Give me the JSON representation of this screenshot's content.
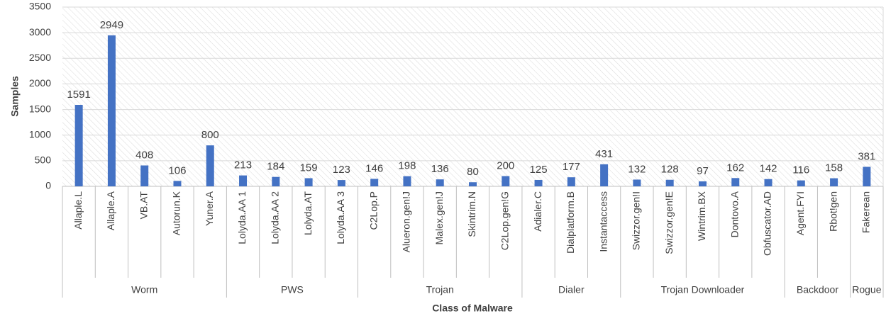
{
  "chart_data": {
    "type": "bar",
    "x_label": "Class of Malware",
    "y_label": "Samples",
    "color": "#4472c4",
    "ylim": [
      0,
      3500
    ],
    "yticks": [
      0,
      500,
      1000,
      1500,
      2000,
      2500,
      3000,
      3500
    ],
    "grid": true,
    "groups": [
      {
        "name": "Worm",
        "categories": [
          "Allaple.L",
          "Allaple.A",
          "VB.AT",
          "Autorun.K",
          "Yuner.A"
        ],
        "values": [
          1591,
          2949,
          408,
          106,
          800
        ]
      },
      {
        "name": "PWS",
        "categories": [
          "Lolyda.AA 1",
          "Lolyda.AA 2",
          "Lolyda.AT",
          "Lolyda.AA 3"
        ],
        "values": [
          213,
          184,
          159,
          123
        ]
      },
      {
        "name": "Trojan",
        "categories": [
          "C2Lop.P",
          "Alueron.gen!J",
          "Malex.gen!J",
          "Skintrim.N",
          "C2Lop.gen!G"
        ],
        "values": [
          146,
          198,
          136,
          80,
          200
        ]
      },
      {
        "name": "Dialer",
        "categories": [
          "Adialer.C",
          "Dialplatform.B",
          "Instantaccess"
        ],
        "values": [
          125,
          177,
          431
        ]
      },
      {
        "name": "Trojan Downloader",
        "categories": [
          "Swizzor.gen!I",
          "Swizzor.gen!E",
          "Wintrim.BX",
          "Dontovo.A",
          "Obfuscator.AD"
        ],
        "values": [
          132,
          128,
          97,
          162,
          142
        ]
      },
      {
        "name": "Backdoor",
        "categories": [
          "Agent.FYI",
          "Rbot!gen"
        ],
        "values": [
          116,
          158
        ]
      },
      {
        "name": "Rogue",
        "categories": [
          "Fakerean"
        ],
        "values": [
          381
        ]
      }
    ]
  }
}
